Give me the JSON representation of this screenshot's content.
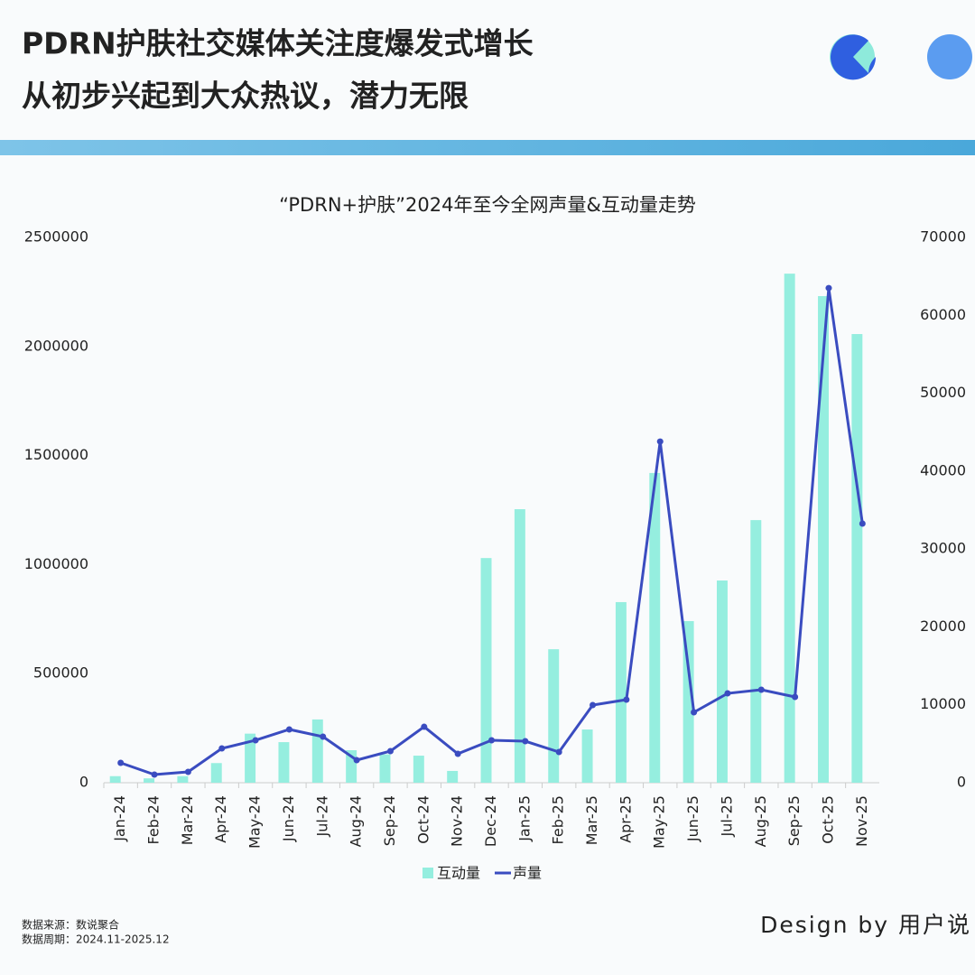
{
  "header": {
    "title_lines": [
      "PDRN护肤社交媒体关注度爆发式增长",
      "从初步兴起到大众热议，潜力无限"
    ]
  },
  "chart_data": {
    "type": "bar",
    "title": "“PDRN+护肤”2024年至今全网声量&互动量走势",
    "categories": [
      "Jan-24",
      "Feb-24",
      "Mar-24",
      "Apr-24",
      "May-24",
      "Jun-24",
      "Jul-24",
      "Aug-24",
      "Sep-24",
      "Oct-24",
      "Nov-24",
      "Dec-24",
      "Jan-25",
      "Feb-25",
      "Mar-25",
      "Apr-25",
      "May-25",
      "Jun-25",
      "Jul-25",
      "Aug-25",
      "Sep-25",
      "Oct-25",
      "Nov-25"
    ],
    "series": [
      {
        "name": "互动量",
        "type": "bar",
        "color": "#95eedf",
        "values": [
          30000,
          20000,
          30000,
          90000,
          225000,
          186000,
          290000,
          149000,
          130000,
          124000,
          54000,
          1030000,
          1254000,
          612000,
          244000,
          828000,
          1420000,
          741000,
          927000,
          1204000,
          2334000,
          2231000,
          2057000
        ]
      },
      {
        "name": "声量",
        "type": "line",
        "color": "#3a4cc0",
        "axis": "y2",
        "values": [
          2550,
          1040,
          1390,
          4400,
          5450,
          6840,
          5910,
          2900,
          4060,
          7180,
          3710,
          5450,
          5330,
          3940,
          9970,
          10660,
          43800,
          9040,
          11470,
          11940,
          11010,
          63500,
          33260
        ]
      }
    ],
    "ylim": [
      0,
      2500000
    ],
    "yticks": [
      0,
      500000,
      1000000,
      1500000,
      2000000,
      2500000
    ],
    "y2lim": [
      0,
      70000
    ],
    "y2ticks": [
      0,
      10000,
      20000,
      30000,
      40000,
      50000,
      60000,
      70000
    ],
    "grid": false,
    "legend": "bottom"
  },
  "footer": {
    "source": "数据来源：数说聚合",
    "period": "数据周期：2024.11-2025.12",
    "credit": "Design by 用户说"
  }
}
